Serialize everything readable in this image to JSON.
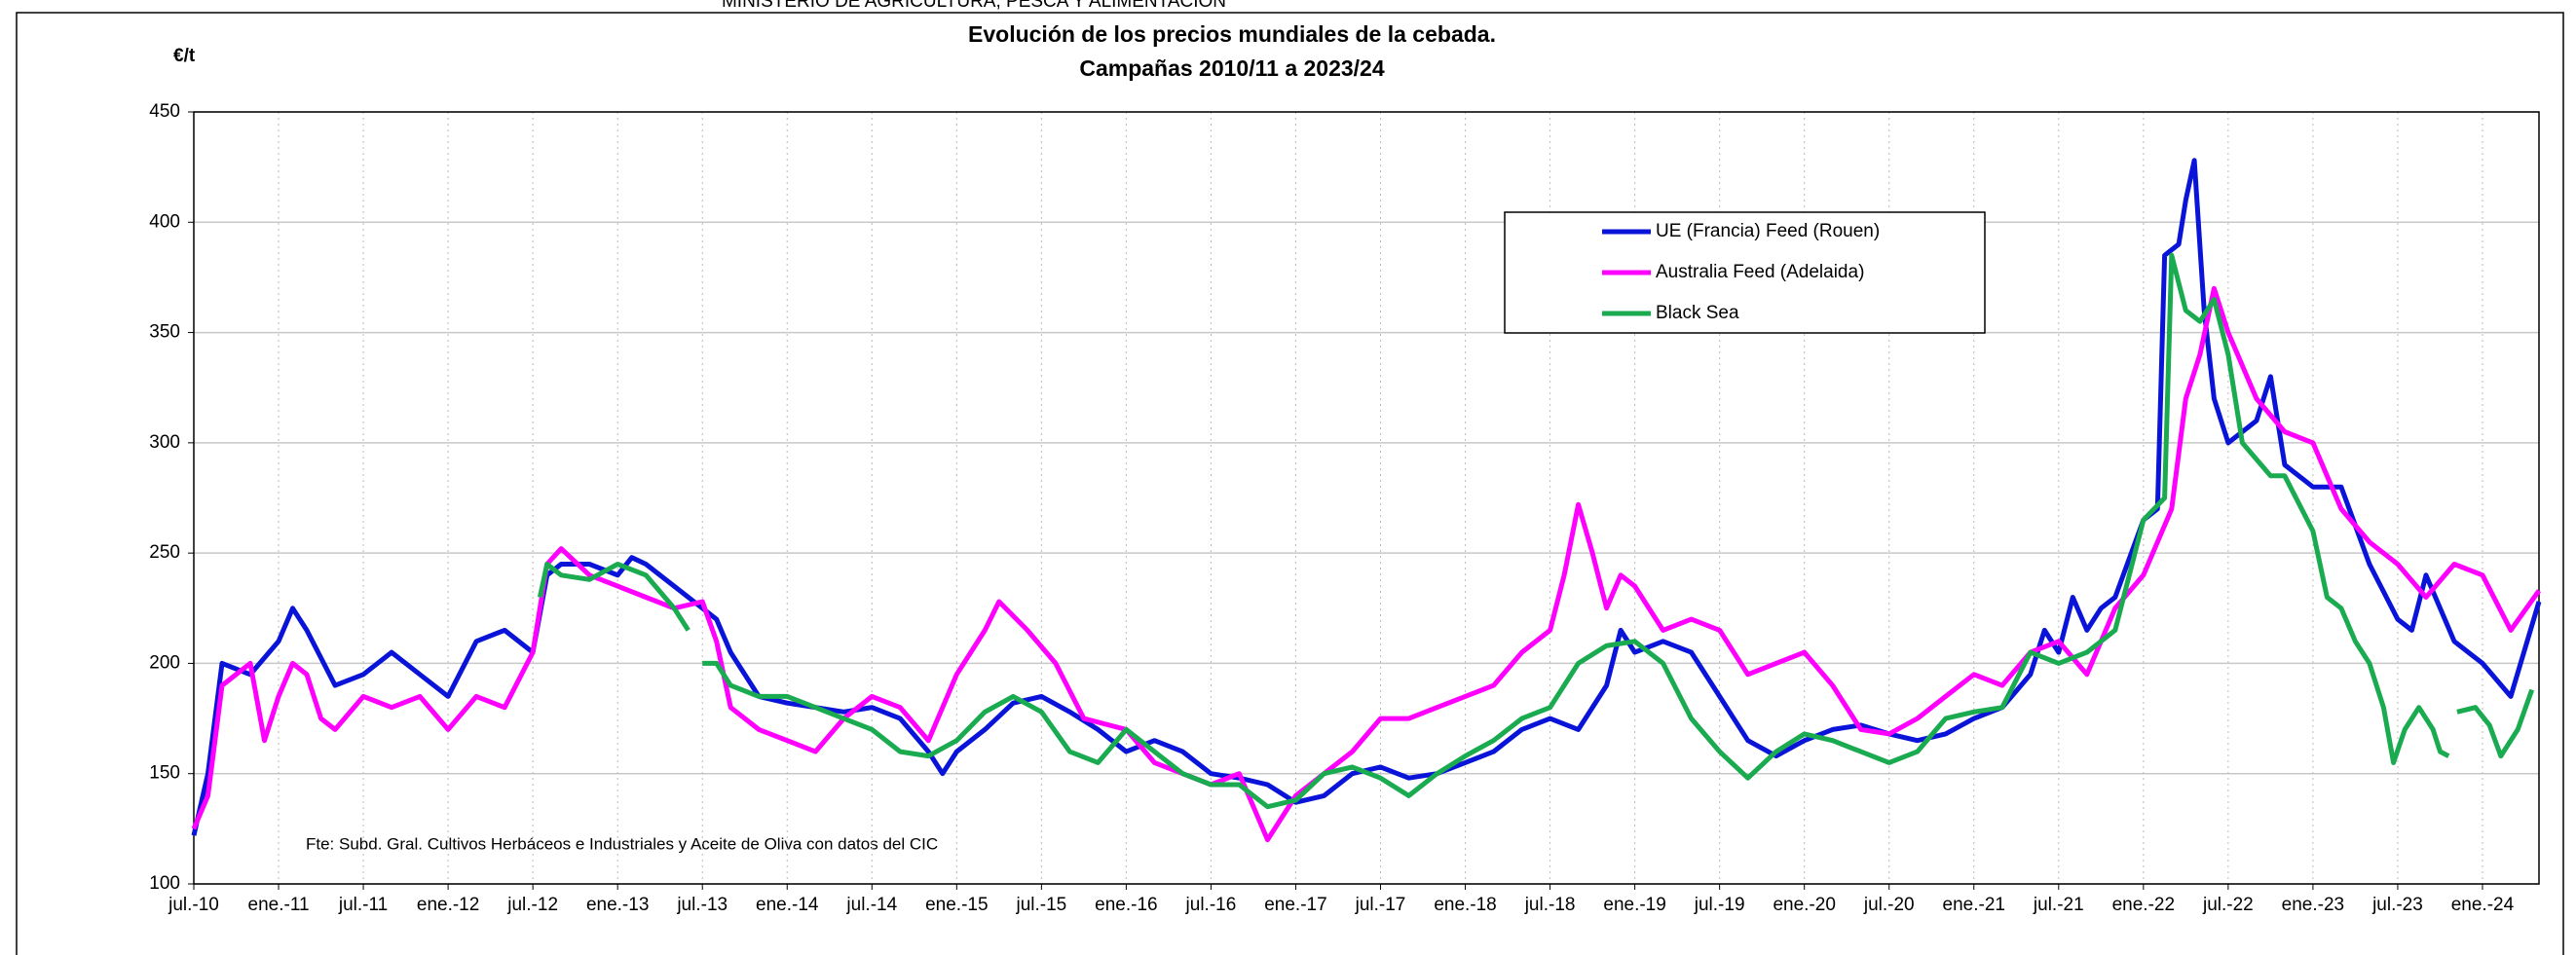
{
  "header": "MINISTERIO DE AGRICULTURA, PESCA Y ALIMENTACIÓN",
  "chart_data": {
    "type": "line",
    "title": "Evolución de los precios mundiales de la cebada.",
    "subtitle": "Campañas 2010/11 a 2023/24",
    "y_label": "€/t",
    "annotation": "Fte: Subd. Gral. Cultivos Herbáceos e Industriales y Aceite de Oliva con datos del CIC",
    "xlim": [
      0,
      166
    ],
    "xticks": [
      {
        "value": 0,
        "label": "jul.-10"
      },
      {
        "value": 6,
        "label": "ene.-11"
      },
      {
        "value": 12,
        "label": "jul.-11"
      },
      {
        "value": 18,
        "label": "ene.-12"
      },
      {
        "value": 24,
        "label": "jul.-12"
      },
      {
        "value": 30,
        "label": "ene.-13"
      },
      {
        "value": 36,
        "label": "jul.-13"
      },
      {
        "value": 42,
        "label": "ene.-14"
      },
      {
        "value": 48,
        "label": "jul.-14"
      },
      {
        "value": 54,
        "label": "ene.-15"
      },
      {
        "value": 60,
        "label": "jul.-15"
      },
      {
        "value": 66,
        "label": "ene.-16"
      },
      {
        "value": 72,
        "label": "jul.-16"
      },
      {
        "value": 78,
        "label": "ene.-17"
      },
      {
        "value": 84,
        "label": "jul.-17"
      },
      {
        "value": 90,
        "label": "ene.-18"
      },
      {
        "value": 96,
        "label": "jul.-18"
      },
      {
        "value": 102,
        "label": "ene.-19"
      },
      {
        "value": 108,
        "label": "jul.-19"
      },
      {
        "value": 114,
        "label": "ene.-20"
      },
      {
        "value": 120,
        "label": "jul.-20"
      },
      {
        "value": 126,
        "label": "ene.-21"
      },
      {
        "value": 132,
        "label": "jul.-21"
      },
      {
        "value": 138,
        "label": "ene.-22"
      },
      {
        "value": 144,
        "label": "jul.-22"
      },
      {
        "value": 150,
        "label": "ene.-23"
      },
      {
        "value": 156,
        "label": "jul.-23"
      },
      {
        "value": 162,
        "label": "ene.-24"
      }
    ],
    "ylim": [
      100,
      450
    ],
    "yticks": [
      100,
      150,
      200,
      250,
      300,
      350,
      400,
      450
    ],
    "grid": true,
    "legend": "top-right",
    "series": [
      {
        "name": "UE (Francia) Feed (Rouen)",
        "color": "#0a14d8",
        "x": [
          0,
          1,
          2,
          4,
          6,
          7,
          8,
          10,
          12,
          14,
          16,
          18,
          20,
          22,
          24,
          25,
          26,
          28,
          30,
          31,
          32,
          34,
          36,
          37,
          38,
          40,
          42,
          44,
          46,
          48,
          50,
          52,
          53,
          54,
          56,
          58,
          60,
          62,
          64,
          66,
          68,
          70,
          72,
          74,
          76,
          78,
          80,
          82,
          84,
          86,
          88,
          90,
          92,
          94,
          96,
          98,
          100,
          101,
          102,
          104,
          106,
          108,
          110,
          112,
          114,
          116,
          118,
          120,
          122,
          124,
          126,
          128,
          130,
          131,
          132,
          133,
          134,
          135,
          136,
          138,
          139,
          139.5,
          140.5,
          141,
          141.6,
          142.3,
          143,
          144,
          146,
          147,
          148,
          150,
          152,
          154,
          156,
          157,
          158,
          160,
          162,
          164,
          166
        ],
        "values": [
          122,
          150,
          200,
          195,
          210,
          225,
          215,
          190,
          195,
          205,
          195,
          185,
          210,
          215,
          205,
          240,
          245,
          245,
          240,
          248,
          245,
          235,
          225,
          220,
          205,
          185,
          182,
          180,
          178,
          180,
          175,
          160,
          150,
          160,
          170,
          182,
          185,
          178,
          170,
          160,
          165,
          160,
          150,
          148,
          145,
          137,
          140,
          150,
          153,
          148,
          150,
          155,
          160,
          170,
          175,
          170,
          190,
          215,
          205,
          210,
          205,
          185,
          165,
          158,
          165,
          170,
          172,
          168,
          165,
          168,
          175,
          180,
          195,
          215,
          205,
          230,
          215,
          225,
          230,
          265,
          270,
          385,
          390,
          410,
          428,
          360,
          320,
          300,
          310,
          330,
          290,
          280,
          280,
          245,
          220,
          215,
          240,
          210,
          200,
          185,
          228
        ]
      },
      {
        "name": "Australia Feed (Adelaida)",
        "color": "#ff00ff",
        "x": [
          0,
          1,
          2,
          4,
          5,
          6,
          7,
          8,
          9,
          10,
          12,
          14,
          16,
          18,
          20,
          22,
          24,
          25,
          26,
          28,
          30,
          32,
          34,
          36,
          37,
          38,
          40,
          42,
          44,
          46,
          48,
          50,
          52,
          54,
          56,
          57,
          59,
          61,
          63,
          66,
          68,
          70,
          72,
          74,
          75,
          76,
          78,
          80,
          82,
          84,
          86,
          88,
          90,
          92,
          94,
          96,
          97,
          98,
          99,
          100,
          101,
          102,
          104,
          106,
          108,
          110,
          112,
          114,
          116,
          118,
          120,
          122,
          124,
          126,
          128,
          130,
          132,
          134,
          136,
          138,
          140,
          141,
          142,
          143,
          144,
          146,
          148,
          150,
          152,
          154,
          156,
          158,
          160,
          162,
          164,
          166
        ],
        "values": [
          125,
          140,
          190,
          200,
          165,
          185,
          200,
          195,
          175,
          170,
          185,
          180,
          185,
          170,
          185,
          180,
          205,
          245,
          252,
          240,
          235,
          230,
          225,
          228,
          210,
          180,
          170,
          165,
          160,
          175,
          185,
          180,
          165,
          195,
          215,
          228,
          215,
          200,
          175,
          170,
          155,
          150,
          145,
          150,
          135,
          120,
          140,
          150,
          160,
          175,
          175,
          180,
          185,
          190,
          205,
          215,
          240,
          272,
          250,
          225,
          240,
          235,
          215,
          220,
          215,
          195,
          200,
          205,
          190,
          170,
          168,
          175,
          185,
          195,
          190,
          205,
          210,
          195,
          225,
          240,
          270,
          320,
          340,
          370,
          350,
          320,
          305,
          300,
          270,
          255,
          245,
          230,
          245,
          240,
          215,
          233
        ]
      },
      {
        "name": "Black Sea",
        "color": "#1aaa50",
        "x": [
          24.5,
          25,
          26,
          28,
          30,
          32,
          34,
          35,
          35.5,
          36,
          37,
          38,
          40,
          42,
          44,
          46,
          48,
          50,
          52,
          54,
          56,
          58,
          60,
          62,
          64,
          66,
          68,
          70,
          72,
          74,
          76,
          78,
          80,
          82,
          84,
          86,
          88,
          90,
          92,
          94,
          96,
          98,
          100,
          102,
          104,
          106,
          108,
          110,
          112,
          114,
          116,
          118,
          120,
          122,
          124,
          126,
          128,
          130,
          132,
          134,
          136,
          138,
          139.5,
          140,
          141,
          142,
          143,
          144,
          145,
          147,
          148,
          150,
          151,
          152,
          153,
          154,
          155,
          155.7,
          156.5,
          157.5,
          158.5,
          159,
          159.6,
          159.9,
          160.2,
          161.5,
          162.5,
          163.3,
          164.5,
          165.5
        ],
        "values": [
          230,
          245,
          240,
          238,
          245,
          240,
          225,
          215,
          null,
          200,
          200,
          190,
          185,
          185,
          180,
          175,
          170,
          160,
          158,
          165,
          178,
          185,
          178,
          160,
          155,
          170,
          160,
          150,
          145,
          145,
          135,
          138,
          150,
          153,
          148,
          140,
          150,
          158,
          165,
          175,
          180,
          200,
          208,
          210,
          200,
          175,
          160,
          148,
          160,
          168,
          165,
          160,
          155,
          160,
          175,
          178,
          180,
          205,
          200,
          205,
          215,
          265,
          275,
          385,
          360,
          355,
          365,
          340,
          300,
          285,
          285,
          260,
          230,
          225,
          210,
          200,
          180,
          155,
          170,
          180,
          170,
          160,
          158,
          null,
          178,
          180,
          172,
          158,
          170,
          188
        ]
      }
    ]
  }
}
